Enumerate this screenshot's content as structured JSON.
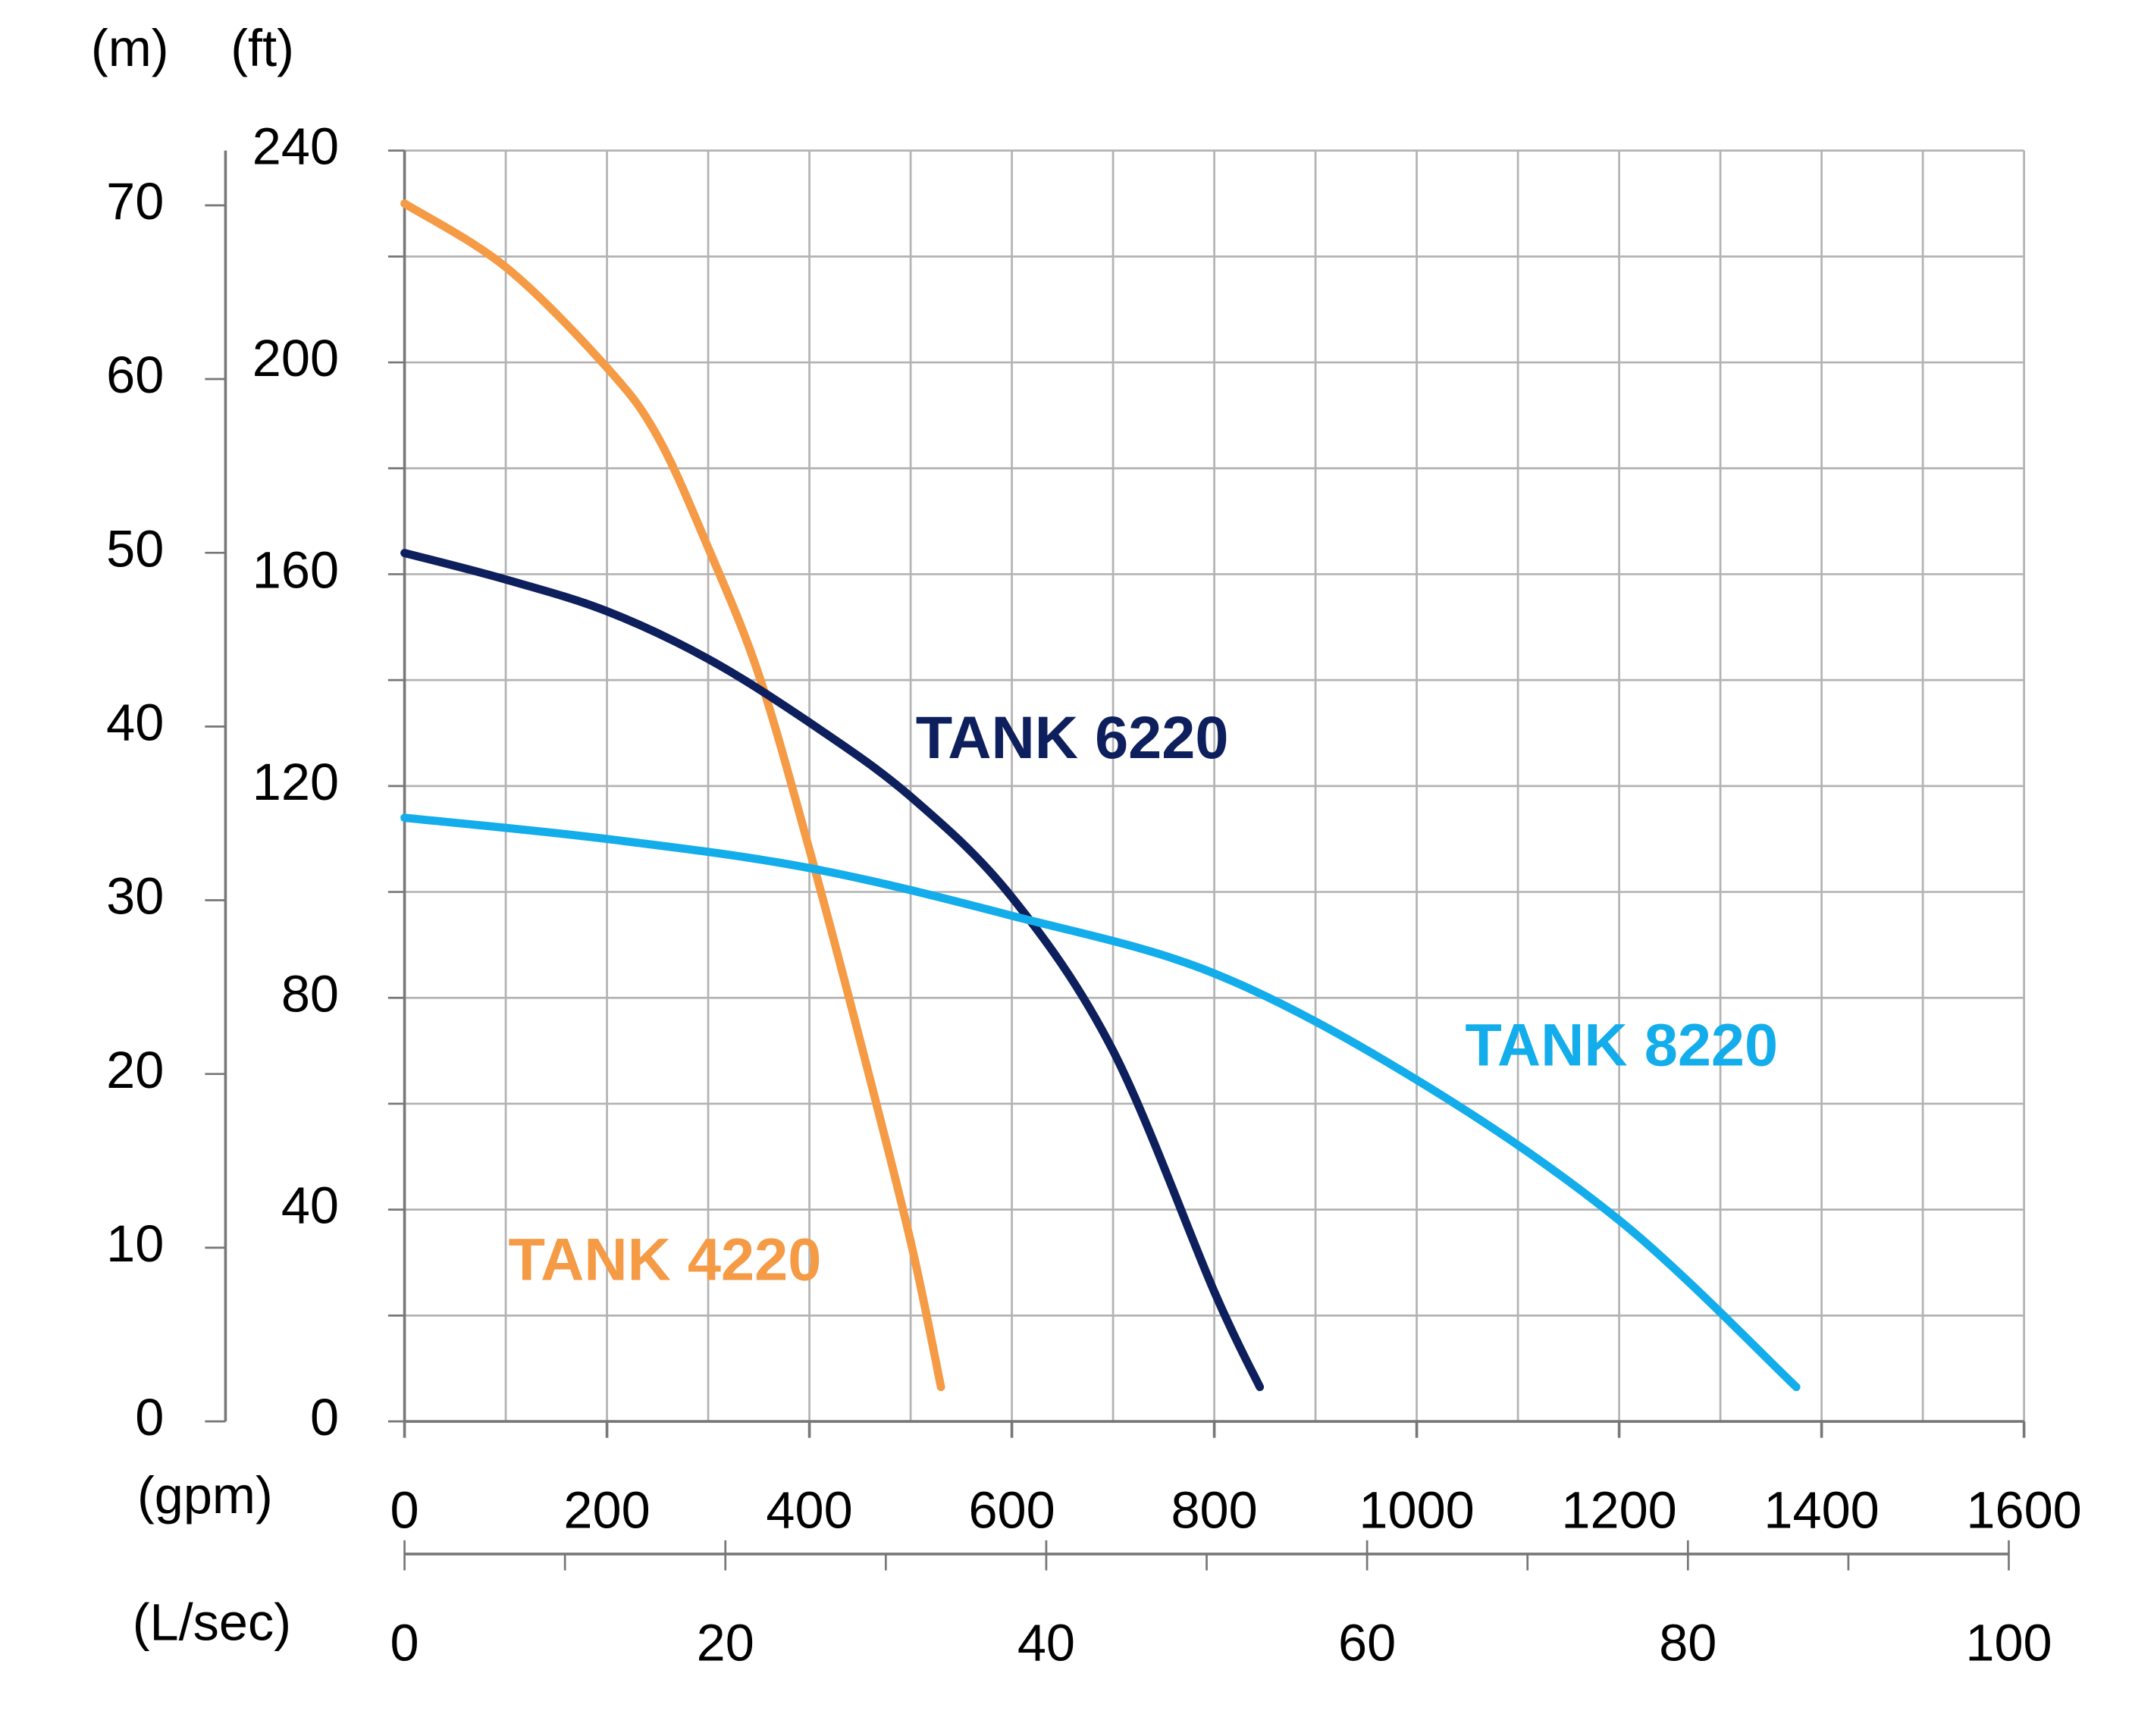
{
  "chart_data": {
    "type": "line",
    "x_label": "(gpm)",
    "y_label": "(ft)",
    "y2_label": "(m)",
    "x2_label": "(L/sec)",
    "xlim": [
      0,
      1600
    ],
    "xticks": [
      0,
      200,
      400,
      600,
      800,
      1000,
      1200,
      1400,
      1600
    ],
    "xminor": [
      100,
      300,
      500,
      700,
      900,
      1100,
      1300,
      1500
    ],
    "ylim": [
      0,
      240
    ],
    "yticks": [
      0,
      40,
      80,
      120,
      160,
      200,
      240
    ],
    "yminor": [
      20,
      60,
      100,
      140,
      180,
      220
    ],
    "y2lim": [
      0,
      73.15
    ],
    "y2ticks": [
      0,
      10,
      20,
      30,
      40,
      50,
      60,
      70
    ],
    "x2lim": [
      0,
      100.95
    ],
    "x2ticks": [
      0,
      20,
      40,
      60,
      80,
      100
    ],
    "x2minor": [
      10,
      30,
      50,
      70,
      90
    ],
    "grid": true,
    "series": [
      {
        "name": "TANK 4220",
        "color": "#f59a45",
        "x": [
          0,
          100,
          200,
          250,
          300,
          350,
          400,
          450,
          500,
          530
        ],
        "values": [
          230,
          218,
          199,
          186,
          165,
          141,
          108,
          72,
          34,
          6.5
        ]
      },
      {
        "name": "TANK 6220",
        "color": "#0d1f5c",
        "x": [
          0,
          100,
          200,
          300,
          400,
          500,
          600,
          700,
          800,
          845
        ],
        "values": [
          164,
          159,
          153,
          144,
          132,
          118,
          99,
          70,
          24.5,
          6.5
        ]
      },
      {
        "name": "TANK 8220",
        "color": "#12adea",
        "x": [
          0,
          200,
          400,
          600,
          800,
          1000,
          1200,
          1375
        ],
        "values": [
          114,
          110,
          104.5,
          95.5,
          84.6,
          64.5,
          38,
          6.5
        ]
      }
    ]
  }
}
